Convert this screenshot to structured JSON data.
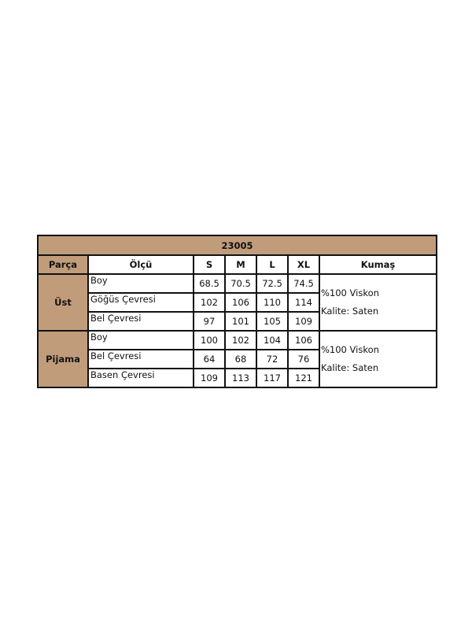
{
  "title": "23005",
  "headers": [
    "Parça",
    "Ölçü",
    "S",
    "M",
    "L",
    "XL",
    "Kumaş"
  ],
  "groups": [
    {
      "part": "Üst",
      "fabric": [
        "%100 Viskon",
        "Kalite: Saten"
      ],
      "rows": [
        {
          "measure": "Boy",
          "values": [
            "68.5",
            "70.5",
            "72.5",
            "74.5"
          ]
        },
        {
          "measure": "Göğüs Çevresi",
          "values": [
            "102",
            "106",
            "110",
            "114"
          ]
        },
        {
          "measure": "Bel Çevresi",
          "values": [
            "97",
            "101",
            "105",
            "109"
          ]
        }
      ]
    },
    {
      "part": "Pijama",
      "fabric": [
        "%100 Viskon",
        "Kalite: Saten"
      ],
      "rows": [
        {
          "measure": "Boy",
          "values": [
            "100",
            "102",
            "104",
            "106"
          ]
        },
        {
          "measure": "Bel Çevresi",
          "values": [
            "64",
            "68",
            "72",
            "76"
          ]
        },
        {
          "measure": "Basen Çevresi",
          "values": [
            "109",
            "113",
            "117",
            "121"
          ]
        }
      ]
    }
  ],
  "colors": {
    "header_bg": "#C19C7B",
    "border": "#111111"
  }
}
